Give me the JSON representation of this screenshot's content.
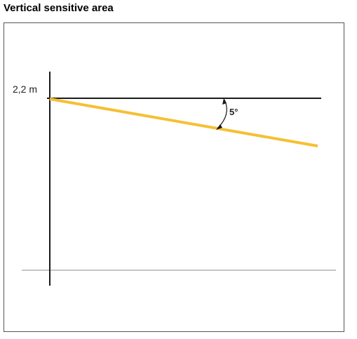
{
  "title": "Vertical sensitive area",
  "diagram": {
    "height_label": "2,2 m",
    "angle_label": "5°",
    "colors": {
      "sensitive_line": "#f5c033",
      "axis": "#1a1a1a",
      "ground": "#888888",
      "frame": "#555555"
    }
  }
}
